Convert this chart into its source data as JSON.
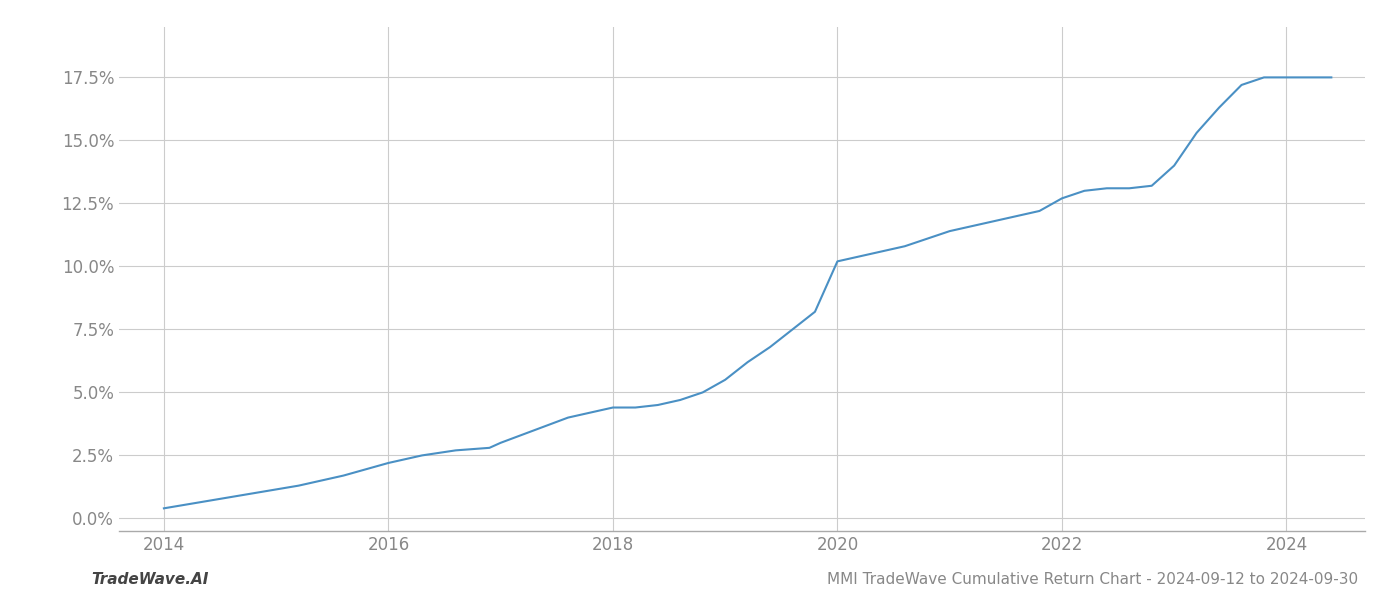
{
  "x_years": [
    2014.0,
    2014.4,
    2014.8,
    2015.2,
    2015.6,
    2016.0,
    2016.3,
    2016.6,
    2016.9,
    2017.0,
    2017.3,
    2017.6,
    2017.9,
    2018.0,
    2018.2,
    2018.4,
    2018.6,
    2018.8,
    2019.0,
    2019.2,
    2019.4,
    2019.6,
    2019.8,
    2020.0,
    2020.2,
    2020.4,
    2020.6,
    2020.8,
    2021.0,
    2021.2,
    2021.4,
    2021.6,
    2021.8,
    2022.0,
    2022.2,
    2022.4,
    2022.6,
    2022.8,
    2023.0,
    2023.2,
    2023.4,
    2023.6,
    2023.8,
    2024.0,
    2024.2,
    2024.4
  ],
  "y_values": [
    0.004,
    0.007,
    0.01,
    0.013,
    0.017,
    0.022,
    0.025,
    0.027,
    0.028,
    0.03,
    0.035,
    0.04,
    0.043,
    0.044,
    0.044,
    0.045,
    0.047,
    0.05,
    0.055,
    0.062,
    0.068,
    0.075,
    0.082,
    0.102,
    0.104,
    0.106,
    0.108,
    0.111,
    0.114,
    0.116,
    0.118,
    0.12,
    0.122,
    0.127,
    0.13,
    0.131,
    0.131,
    0.132,
    0.14,
    0.153,
    0.163,
    0.172,
    0.175,
    0.175,
    0.175,
    0.175
  ],
  "line_color": "#4a90c4",
  "line_width": 1.5,
  "background_color": "#ffffff",
  "grid_color": "#cccccc",
  "tick_color": "#888888",
  "spine_color": "#aaaaaa",
  "footer_left": "TradeWave.AI",
  "footer_right": "MMI TradeWave Cumulative Return Chart - 2024-09-12 to 2024-09-30",
  "footer_fontsize": 11,
  "ytick_labels": [
    "0.0%",
    "2.5%",
    "5.0%",
    "7.5%",
    "10.0%",
    "12.5%",
    "15.0%",
    "17.5%"
  ],
  "ytick_values": [
    0.0,
    0.025,
    0.05,
    0.075,
    0.1,
    0.125,
    0.15,
    0.175
  ],
  "xtick_labels": [
    "2014",
    "2016",
    "2018",
    "2020",
    "2022",
    "2024"
  ],
  "xtick_values": [
    2014,
    2016,
    2018,
    2020,
    2022,
    2024
  ],
  "xlim": [
    2013.6,
    2024.7
  ],
  "ylim": [
    -0.005,
    0.195
  ]
}
